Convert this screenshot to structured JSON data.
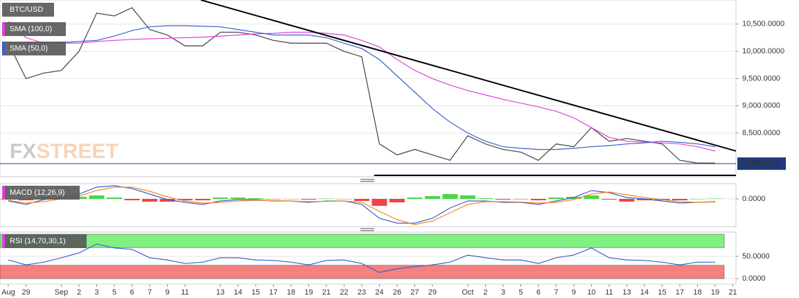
{
  "chart_data": [
    {
      "type": "line",
      "series": [
        {
          "name": "BTC/USD",
          "color": "#4d4d4d",
          "values": [
            10150,
            9500,
            9600,
            9650,
            10000,
            10700,
            10650,
            10800,
            10400,
            10300,
            10100,
            10100,
            10350,
            10350,
            10300,
            10200,
            10150,
            10150,
            10150,
            10000,
            9900,
            8300,
            8100,
            8200,
            8100,
            8000,
            8450,
            8300,
            8200,
            8150,
            8000,
            8300,
            8250,
            8600,
            8350,
            8400,
            8350,
            8300,
            8000,
            7950,
            7950,
            null
          ]
        },
        {
          "name": "SMA (100,0)",
          "color": "#e040e0",
          "values": [
            10550,
            10250,
            10150,
            10150,
            10150,
            10180,
            10200,
            10220,
            10230,
            10240,
            10250,
            10260,
            10280,
            10300,
            10320,
            10330,
            10350,
            10350,
            10330,
            10300,
            10200,
            10080,
            9850,
            9650,
            9500,
            9380,
            9280,
            9200,
            9120,
            9050,
            8980,
            8900,
            8780,
            8600,
            8420,
            8350,
            8330,
            8320,
            8300,
            8250,
            8170,
            null
          ]
        },
        {
          "name": "SMA (50,0)",
          "color": "#3a5fcd",
          "values": [
            10150,
            10150,
            10150,
            10160,
            10180,
            10200,
            10280,
            10380,
            10450,
            10470,
            10470,
            10460,
            10450,
            10400,
            10350,
            10300,
            10300,
            10300,
            10250,
            10150,
            10050,
            9850,
            9550,
            9250,
            8950,
            8700,
            8500,
            8350,
            8250,
            8220,
            8200,
            8200,
            8220,
            8250,
            8270,
            8300,
            8320,
            8350,
            8330,
            8300,
            8250,
            null
          ]
        }
      ],
      "ylim": [
        7699,
        10942
      ],
      "yticks": [
        {
          "value": 8500,
          "label": "8,500.0000"
        },
        {
          "value": 9000,
          "label": "9,000.0000"
        },
        {
          "value": 9500,
          "label": "9,500.0000"
        },
        {
          "value": 10000,
          "label": "10,000.0000"
        },
        {
          "value": 10500,
          "label": "10,500.0000"
        }
      ],
      "trendlines": [
        {
          "x": [
            10.9,
            41.2
          ],
          "y": [
            10942,
            8169
          ]
        },
        {
          "x": [
            20.7,
            41.2
          ],
          "y": [
            7724,
            7724
          ]
        }
      ],
      "current_price": {
        "value": 7938.8921,
        "label": "7,938.8921"
      },
      "watermark": {
        "prefix": "FX",
        "suffix": "STREET"
      }
    },
    {
      "type": "macd",
      "title": "MACD (12,26,9)",
      "series": [
        {
          "color": "#3a5fcd",
          "values": [
            -30,
            -80,
            -10,
            20,
            70,
            170,
            190,
            150,
            70,
            -10,
            -50,
            -80,
            -30,
            -10,
            -10,
            -30,
            -30,
            -50,
            -30,
            -30,
            -80,
            -280,
            -350,
            -350,
            -280,
            -130,
            -30,
            -30,
            -50,
            -50,
            -80,
            -30,
            20,
            120,
            90,
            20,
            0,
            -30,
            -60,
            -50,
            -40,
            null
          ]
        },
        {
          "color": "#f08a24",
          "values": [
            -20,
            -60,
            -40,
            0,
            40,
            120,
            170,
            170,
            110,
            30,
            -30,
            -60,
            -50,
            -30,
            -20,
            -25,
            -30,
            -40,
            -35,
            -30,
            -50,
            -180,
            -300,
            -370,
            -320,
            -200,
            -80,
            -40,
            -40,
            -45,
            -60,
            -50,
            -10,
            70,
            100,
            60,
            20,
            -10,
            -40,
            -50,
            -45,
            null
          ]
        }
      ],
      "histogram": {
        "values": [
          -10,
          -20,
          30,
          20,
          30,
          50,
          20,
          -20,
          -40,
          -40,
          -20,
          -20,
          20,
          20,
          10,
          -5,
          0,
          -10,
          5,
          0,
          -30,
          -100,
          -50,
          20,
          40,
          70,
          50,
          10,
          -10,
          -5,
          -20,
          20,
          30,
          50,
          -10,
          -40,
          -20,
          -20,
          -20,
          0,
          5,
          null
        ],
        "colors": [
          "#2ad12a",
          "#ee2222"
        ]
      },
      "ylim": [
        -400,
        220
      ],
      "yticks": [
        {
          "value": 0,
          "label": "0.0000"
        }
      ]
    },
    {
      "type": "line",
      "title": "RSI (14,70,30,1)",
      "series": [
        {
          "color": "#3a5fcd",
          "values": [
            42,
            31,
            37,
            47,
            58,
            78,
            69,
            66,
            47,
            42,
            34,
            37,
            47,
            47,
            42,
            41,
            37,
            31,
            41,
            42,
            34,
            14,
            22,
            27,
            31,
            37,
            53,
            47,
            42,
            42,
            34,
            47,
            53,
            69,
            47,
            42,
            41,
            37,
            31,
            37,
            37,
            null
          ]
        }
      ],
      "bands": [
        {
          "from": 70,
          "to": 100,
          "color": "#80f080"
        },
        {
          "from": 0,
          "to": 30,
          "color": "#f58080"
        }
      ],
      "ylim": [
        -12.5,
        104.7
      ],
      "yticks": [
        {
          "value": 0,
          "label": "0.0000"
        },
        {
          "value": 50,
          "label": "50.0000"
        }
      ],
      "categories": [
        "Aug",
        "29",
        null,
        "Sep",
        "2",
        "3",
        "5",
        "6",
        "7",
        "9",
        "11",
        null,
        "13",
        "14",
        "15",
        "17",
        "18",
        "19",
        "21",
        "22",
        "23",
        "24",
        "26",
        "27",
        "29",
        null,
        "Oct",
        "2",
        "3",
        "5",
        "6",
        "7",
        "9",
        "10",
        "11",
        "13",
        "14",
        "15",
        "17",
        "18",
        "19",
        "21"
      ]
    }
  ]
}
